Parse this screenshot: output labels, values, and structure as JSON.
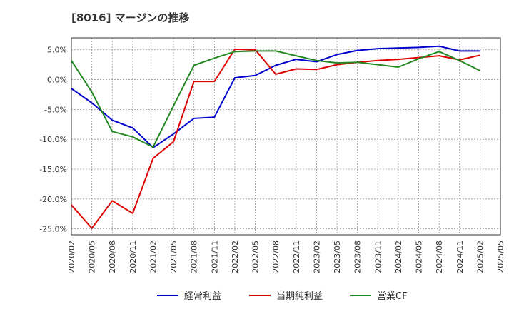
{
  "chart_data": {
    "type": "line",
    "title": "[8016]  マージンの推移",
    "xlabel": "",
    "ylabel": "",
    "categories": [
      "2020/02",
      "2020/05",
      "2020/08",
      "2020/11",
      "2021/02",
      "2021/05",
      "2021/08",
      "2021/11",
      "2022/02",
      "2022/05",
      "2022/08",
      "2022/11",
      "2023/02",
      "2023/05",
      "2023/08",
      "2023/11",
      "2024/02",
      "2024/05",
      "2024/08",
      "2024/11",
      "2025/02",
      "2025/05"
    ],
    "yticks": [
      5,
      0,
      -5,
      -10,
      -15,
      -20,
      -25
    ],
    "ytick_labels": [
      "5.0%",
      "0.0%",
      "-5.0%",
      "-10.0%",
      "-15.0%",
      "-20.0%",
      "-25.0%"
    ],
    "ylim": [
      -26,
      7
    ],
    "grid": true,
    "legend_position": "bottom",
    "series": [
      {
        "name": "経常利益",
        "color": "#0000cc",
        "values": [
          -1.5,
          -3.9,
          -6.8,
          -8.1,
          -11.4,
          -9.1,
          -6.5,
          -6.3,
          0.3,
          0.7,
          2.4,
          3.4,
          3.0,
          4.2,
          4.9,
          5.2,
          5.3,
          5.4,
          5.6,
          4.8,
          4.8,
          null
        ]
      },
      {
        "name": "当期純利益",
        "color": "#dd0000",
        "values": [
          -21.0,
          -24.9,
          -20.3,
          -22.4,
          -13.2,
          -10.4,
          -0.3,
          -0.3,
          5.1,
          5.0,
          0.9,
          1.8,
          1.7,
          2.5,
          2.9,
          3.2,
          3.4,
          3.7,
          4.0,
          3.3,
          4.1,
          null
        ]
      },
      {
        "name": "営業CF",
        "color": "#228822",
        "values": [
          3.2,
          -2.1,
          -8.7,
          -9.6,
          -11.3,
          -4.4,
          2.4,
          3.6,
          4.7,
          4.8,
          4.8,
          4.0,
          3.2,
          2.8,
          2.9,
          2.5,
          2.1,
          3.5,
          4.7,
          3.2,
          1.5,
          null
        ]
      }
    ]
  }
}
